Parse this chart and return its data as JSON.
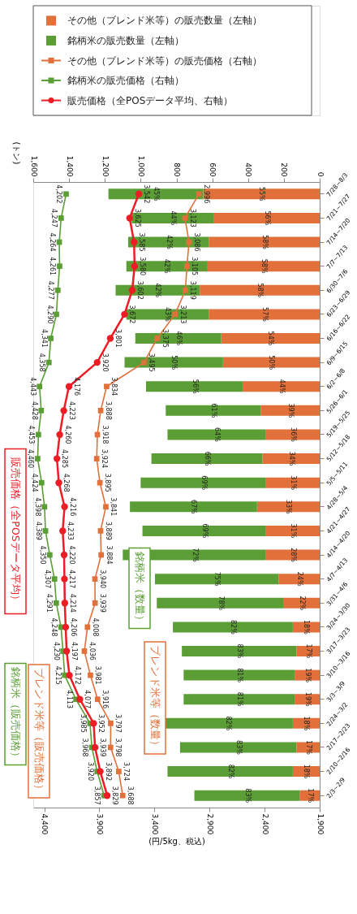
{
  "chart_data": {
    "type": "bar",
    "orientation": "horizontal",
    "stacked": true,
    "legend": "top",
    "xlabel": "(円/5kg、税込)",
    "x2label": "(トン)",
    "xlim": [
      4500,
      1900
    ],
    "xticks": [
      {
        "value": 4400,
        "label": "4,400"
      },
      {
        "value": 3900,
        "label": "3,900"
      },
      {
        "value": 3400,
        "label": "3,400"
      },
      {
        "value": 2900,
        "label": "2,900"
      },
      {
        "value": 2400,
        "label": "2,400"
      },
      {
        "value": 1900,
        "label": "1,900"
      }
    ],
    "x2lim": [
      1600,
      0
    ],
    "x2ticks": [
      {
        "value": 1600,
        "label": "1,600"
      },
      {
        "value": 1400,
        "label": "1,400"
      },
      {
        "value": 1200,
        "label": "1,200"
      },
      {
        "value": 1000,
        "label": "1,000"
      },
      800,
      600,
      400,
      200,
      0
    ],
    "categories": [
      "7/28~8/3",
      "7/21~7/27",
      "7/14~7/20",
      "7/7~7/13",
      "6/30~7/6",
      "6/23~6/29",
      "6/16~6/22",
      "6/9~6/15",
      "6/2~6/8",
      "5/26~6/1",
      "5/19~5/25",
      "5/12~5/18",
      "5/5~5/11",
      "4/28~5/4",
      "4/21~4/27",
      "4/14~4/20",
      "4/7~4/13",
      "3/31~4/6",
      "3/24~3/30",
      "3/17~3/23",
      "3/10~3/16",
      "3/3~3/9",
      "2/24~3/2",
      "2/17~2/23",
      "2/10~2/16",
      "2/3~2/9"
    ],
    "series": [
      {
        "name": "その他（ブレンド米等）の販売数量（左軸）",
        "type": "bar",
        "axis": "x2",
        "color": "#e2703a",
        "values": [
          650,
          590,
          620,
          630,
          670,
          620,
          550,
          540,
          430,
          330,
          300,
          320,
          300,
          350,
          300,
          300,
          230,
          200,
          150,
          130,
          140,
          140,
          150,
          130,
          150,
          110
        ]
      },
      {
        "name": "銘柄米の販売数量（左軸）",
        "type": "bar",
        "axis": "x2",
        "color": "#5b9e36",
        "values": [
          530,
          460,
          450,
          450,
          470,
          460,
          480,
          550,
          540,
          530,
          550,
          620,
          700,
          710,
          690,
          800,
          690,
          710,
          670,
          640,
          620,
          620,
          720,
          650,
          700,
          590
        ]
      },
      {
        "name": "その他（ブレンド米等）の販売価格（右軸）",
        "type": "line",
        "color": "#e2703a",
        "marker": "square",
        "line_style": "solid",
        "values": [
          2996,
          3123,
          3086,
          3105,
          3119,
          3213,
          3375,
          3495,
          3834,
          3888,
          3918,
          3924,
          3895,
          3841,
          3889,
          3884,
          3940,
          3939,
          4008,
          4036,
          3981,
          3916,
          3797,
          3798,
          3724,
          3688
        ],
        "value_labels": [
          "2,996",
          "3,123",
          "3,086",
          "3,105",
          "3,119",
          "3,213",
          "3,375",
          "3,495",
          "3,834",
          "3,888",
          "3,918",
          "3,924",
          "3,895",
          "3,841",
          "3,889",
          "3,884",
          "3,940",
          "3,939",
          "4,008",
          "4,036",
          "3,981",
          "3,916",
          "3,797",
          "3,798",
          "3,724",
          "3,688"
        ]
      },
      {
        "name": "銘柄米の販売価格（右軸）",
        "type": "line",
        "color": "#5b9e36",
        "marker": "square",
        "line_style": "solid",
        "values": [
          4202,
          4247,
          4264,
          4261,
          4277,
          4290,
          4341,
          4358,
          4443,
          4428,
          4453,
          4460,
          4424,
          4398,
          4389,
          4350,
          4307,
          4291,
          4248,
          4230,
          4215,
          4113,
          3985,
          3968,
          3920,
          3857
        ],
        "value_labels": [
          "4,202",
          "4,247",
          "4,264",
          "4,261",
          "4,277",
          "4,290",
          "4,341",
          "4,358",
          "4,443",
          "4,428",
          "4,453",
          "4,460",
          "4,424",
          "4,398",
          "4,389",
          "4,350",
          "4,307",
          "4,291",
          "4,248",
          "4,230",
          "4,215",
          "4,113",
          "3,985",
          "3,968",
          "3,920",
          "3,857"
        ]
      },
      {
        "name": "販売価格（全POSデータ平均、右軸）",
        "type": "line",
        "color": "#ee1c25",
        "marker": "circle",
        "line_style": "solid",
        "values": [
          3542,
          3625,
          3585,
          3580,
          3602,
          3672,
          3801,
          3920,
          4176,
          4223,
          4260,
          4285,
          4268,
          4216,
          4233,
          4220,
          4217,
          4214,
          4206,
          4197,
          4172,
          4077,
          3952,
          3939,
          3892,
          3829
        ],
        "value_labels": [
          "3,542",
          "3,625",
          "3,585",
          "3,580",
          "3,602",
          "3,672",
          "3,801",
          "3,920",
          "4,176",
          "4,223",
          "4,260",
          "4,285",
          "4,268",
          "4,216",
          "4,233",
          "4,220",
          "4,217",
          "4,214",
          "4,206",
          "4,197",
          "4,172",
          "4,077",
          "3,952",
          "3,939",
          "3,892",
          "3,829"
        ]
      }
    ],
    "annotations": [
      "販売価格（全POSデータ平均）",
      "銘柄米（販売価格）",
      "ブレンド米等（販売価格）",
      "銘柄米（数量）",
      "ブレンド米等（数量）",
      "55%",
      "45%",
      "56%",
      "44%",
      "58%",
      "42%",
      "58%",
      "42%",
      "58%",
      "42%",
      "57%",
      "43%",
      "54%",
      "46%",
      "50%",
      "50%",
      "44%",
      "56%",
      "39%",
      "61%",
      "36%",
      "64%",
      "34%",
      "66%",
      "31%",
      "69%",
      "33%",
      "67%",
      "31%",
      "69%",
      "28%",
      "72%",
      "24%",
      "75%",
      "22%",
      "78%",
      "18%",
      "82%",
      "17%",
      "83%",
      "19%",
      "81%",
      "19%",
      "81%",
      "18%",
      "82%",
      "17%",
      "83%",
      "18%",
      "82%",
      "17%",
      "83%"
    ]
  }
}
